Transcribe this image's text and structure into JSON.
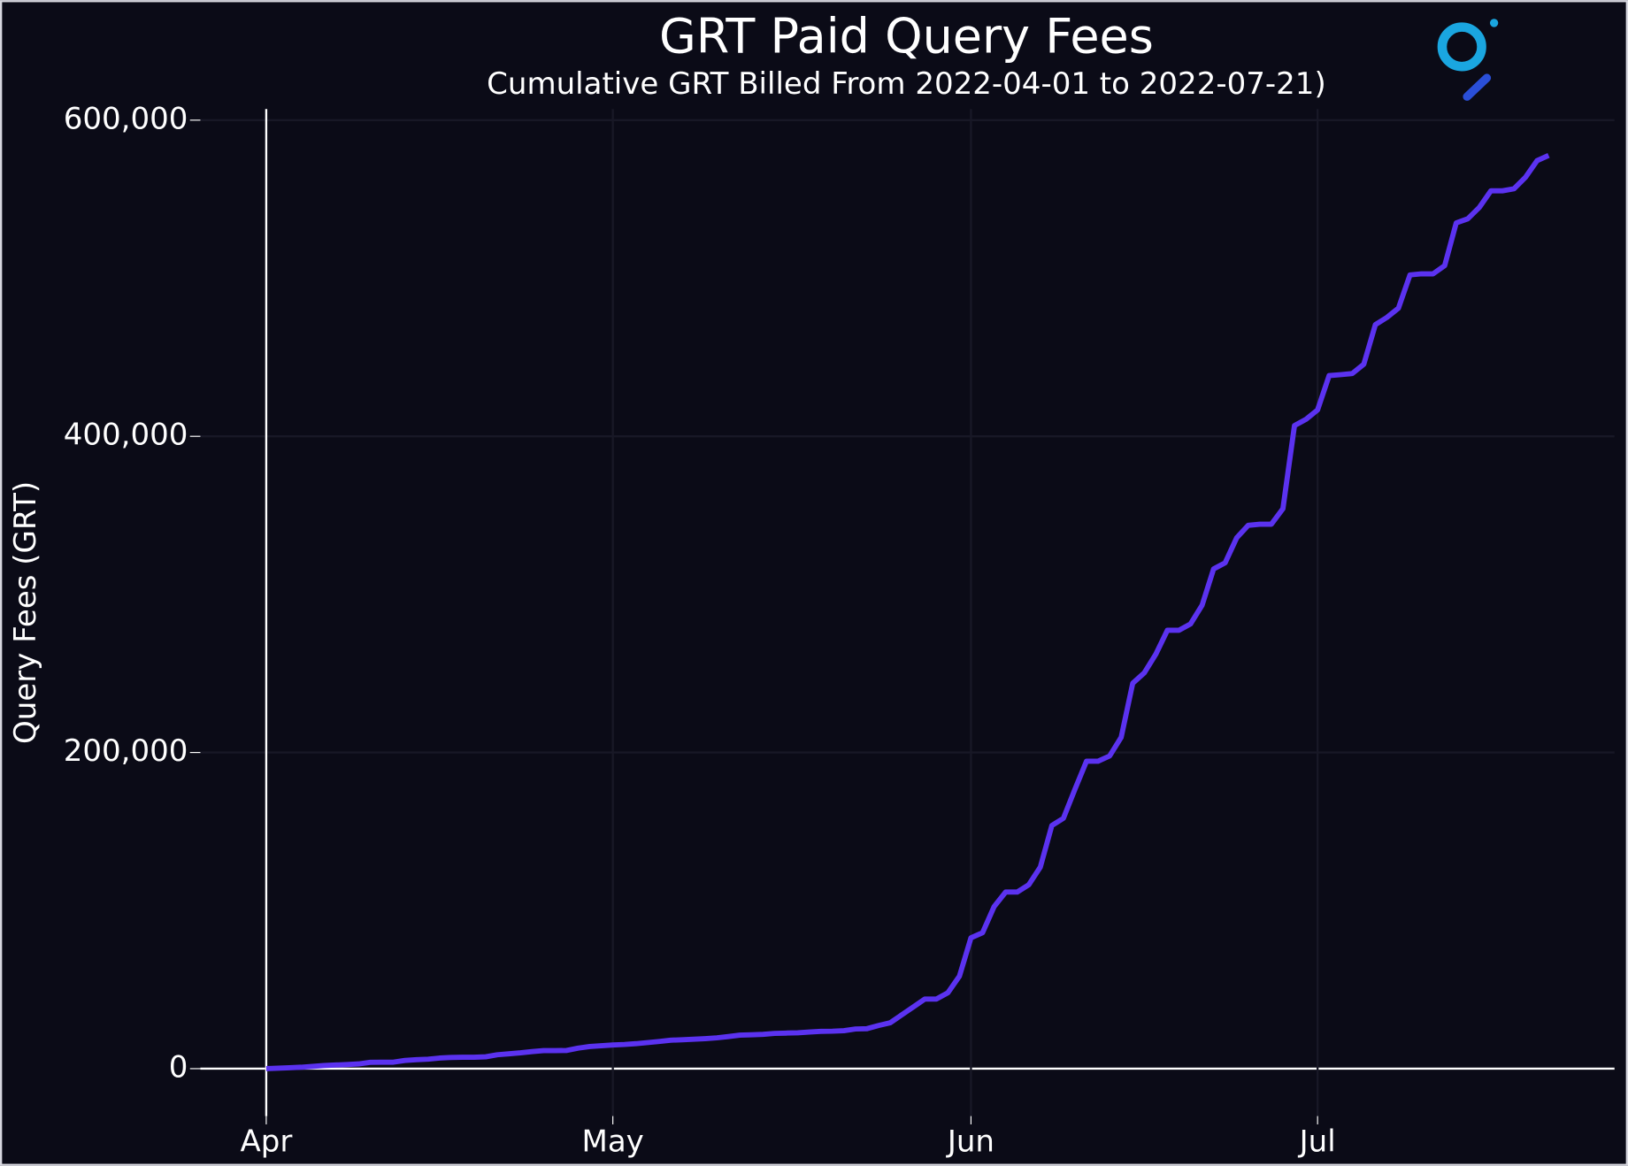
{
  "chart_data": {
    "type": "line",
    "title": "GRT Paid Query Fees",
    "subtitle": "Cumulative GRT Billed From 2022-04-01 to 2022-07-21)",
    "y_label": "Query Fees (GRT)",
    "x": [
      0,
      1,
      2,
      3,
      4,
      5,
      6,
      7,
      8,
      9,
      10,
      11,
      12,
      13,
      14,
      15,
      16,
      17,
      18,
      19,
      20,
      21,
      22,
      23,
      24,
      25,
      26,
      27,
      28,
      29,
      30,
      31,
      32,
      33,
      34,
      35,
      36,
      37,
      38,
      39,
      40,
      41,
      42,
      43,
      44,
      45,
      46,
      47,
      48,
      49,
      50,
      51,
      52,
      53,
      54,
      55,
      56,
      57,
      58,
      59,
      60,
      61,
      62,
      63,
      64,
      65,
      66,
      67,
      68,
      69,
      70,
      71,
      72,
      73,
      74,
      75,
      76,
      77,
      78,
      79,
      80,
      81,
      82,
      83,
      84,
      85,
      86,
      87,
      88,
      89,
      90,
      91,
      92,
      93,
      94,
      95,
      96,
      97,
      98,
      99,
      100,
      101,
      102,
      103,
      104,
      105,
      106,
      107,
      108,
      109,
      110,
      111
    ],
    "values": [
      0,
      300,
      600,
      900,
      1400,
      2000,
      2300,
      2600,
      3000,
      4000,
      4100,
      4100,
      5200,
      5700,
      6000,
      6700,
      7100,
      7200,
      7200,
      7500,
      8800,
      9400,
      10000,
      10800,
      11400,
      11400,
      11500,
      13000,
      14000,
      14500,
      15000,
      15300,
      15800,
      16500,
      17200,
      18000,
      18300,
      18600,
      19000,
      19500,
      20300,
      21200,
      21400,
      21700,
      22300,
      22500,
      22700,
      23200,
      23600,
      23700,
      24000,
      25100,
      25300,
      27300,
      29000,
      34000,
      39000,
      44000,
      44000,
      48000,
      58500,
      82800,
      86000,
      102500,
      111700,
      111700,
      116300,
      127500,
      153800,
      158400,
      176800,
      194500,
      194500,
      197800,
      209600,
      243800,
      250400,
      262200,
      277300,
      277300,
      281300,
      293100,
      316100,
      320000,
      335800,
      343700,
      344400,
      344400,
      354200,
      406800,
      410800,
      416700,
      438400,
      439000,
      439700,
      445600,
      470600,
      475200,
      481100,
      502100,
      502800,
      502800,
      508000,
      535000,
      537600,
      544800,
      555300,
      555300,
      556600,
      563900,
      574400,
      577700
    ],
    "color": "#5b32f0",
    "xlim": [
      -5.7,
      116.7
    ],
    "ylim": [
      -30000,
      607000
    ],
    "xticks": [
      {
        "value": 0,
        "label": "Apr"
      },
      {
        "value": 30,
        "label": "May"
      },
      {
        "value": 61,
        "label": "Jun"
      },
      {
        "value": 91,
        "label": "Jul"
      }
    ],
    "yticks": [
      0,
      {
        "value": 200000,
        "label": "200,000"
      },
      {
        "value": 400000,
        "label": "400,000"
      },
      {
        "value": 600000,
        "label": "600,000"
      }
    ],
    "grid": true
  }
}
